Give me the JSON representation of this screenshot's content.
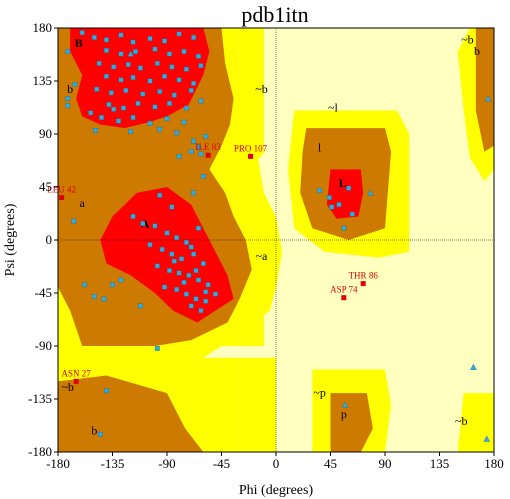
{
  "chart_data": {
    "type": "scatter",
    "title": "pdb1itn",
    "xlabel": "Phi (degrees)",
    "ylabel": "Psi (degrees)",
    "xlim": [
      -180,
      180
    ],
    "ylim": [
      -180,
      180
    ],
    "x_ticks": [
      "-180",
      "-135",
      "-90",
      "-45",
      "0",
      "45",
      "90",
      "135",
      "180"
    ],
    "y_ticks": [
      "180",
      "135",
      "90",
      "45",
      "0",
      "-45",
      "-90",
      "-135",
      "-180"
    ],
    "grid": false,
    "colors": {
      "core": "#ff0000",
      "allowed": "#cc7a00",
      "generous": "#ffff00",
      "disallowed_light": "#ffffc0",
      "background": "#ffffff",
      "points": "#33aadd",
      "labels": "#e00000"
    },
    "region_labels": [
      {
        "text": "B",
        "x": -163,
        "y": 164
      },
      {
        "text": "A",
        "x": -108,
        "y": 10
      },
      {
        "text": "L",
        "x": 55,
        "y": 45
      },
      {
        "text": "l",
        "x": 36,
        "y": 75
      },
      {
        "text": "a",
        "x": -160,
        "y": 28
      },
      {
        "text": "b",
        "x": -170,
        "y": 125
      },
      {
        "text": "~b",
        "x": -12,
        "y": 125
      },
      {
        "text": "~l",
        "x": 47,
        "y": 109
      },
      {
        "text": "~a",
        "x": -12,
        "y": -17
      },
      {
        "text": "~b",
        "x": -172,
        "y": -128
      },
      {
        "text": "b",
        "x": -150,
        "y": -165
      },
      {
        "text": "~p",
        "x": 36,
        "y": -133
      },
      {
        "text": "p",
        "x": 56,
        "y": -151
      },
      {
        "text": "~b",
        "x": 158,
        "y": 167
      },
      {
        "text": "b",
        "x": 166,
        "y": 157
      },
      {
        "text": "~b",
        "x": 153,
        "y": -157
      }
    ],
    "labeled_residues": [
      {
        "name": "LEU 42",
        "phi": -177,
        "psi": 36
      },
      {
        "name": "ILE 83",
        "phi": -56,
        "psi": 72
      },
      {
        "name": "PRO 107",
        "phi": -21,
        "psi": 71
      },
      {
        "name": "THR 86",
        "phi": 72,
        "psi": -37
      },
      {
        "name": "ASP 74",
        "phi": 56,
        "psi": -49
      },
      {
        "name": "ASN 27",
        "phi": -165,
        "psi": -120
      }
    ],
    "points_square": [
      [
        -160,
        176
      ],
      [
        -150,
        172
      ],
      [
        -140,
        170
      ],
      [
        -128,
        174
      ],
      [
        -118,
        168
      ],
      [
        -104,
        171
      ],
      [
        -92,
        169
      ],
      [
        -80,
        175
      ],
      [
        -68,
        172
      ],
      [
        -140,
        161
      ],
      [
        -128,
        158
      ],
      [
        -116,
        160
      ],
      [
        -100,
        162
      ],
      [
        -88,
        158
      ],
      [
        -76,
        160
      ],
      [
        -64,
        156
      ],
      [
        -146,
        150
      ],
      [
        -134,
        147
      ],
      [
        -122,
        149
      ],
      [
        -112,
        146
      ],
      [
        -98,
        150
      ],
      [
        -86,
        147
      ],
      [
        -74,
        145
      ],
      [
        -62,
        148
      ],
      [
        -140,
        139
      ],
      [
        -128,
        136
      ],
      [
        -118,
        138
      ],
      [
        -104,
        135
      ],
      [
        -92,
        139
      ],
      [
        -80,
        136
      ],
      [
        -68,
        133
      ],
      [
        -148,
        128
      ],
      [
        -136,
        125
      ],
      [
        -124,
        127
      ],
      [
        -110,
        124
      ],
      [
        -96,
        126
      ],
      [
        -84,
        123
      ],
      [
        -70,
        127
      ],
      [
        -138,
        115
      ],
      [
        -126,
        112
      ],
      [
        -114,
        116
      ],
      [
        -100,
        113
      ],
      [
        -88,
        116
      ],
      [
        -74,
        112
      ],
      [
        -62,
        118
      ],
      [
        -144,
        104
      ],
      [
        -130,
        101
      ],
      [
        -118,
        104
      ],
      [
        -104,
        99
      ],
      [
        -90,
        103
      ],
      [
        -76,
        100
      ],
      [
        -120,
        92
      ],
      [
        -96,
        94
      ],
      [
        -82,
        91
      ],
      [
        -172,
        160
      ],
      [
        -166,
        132
      ],
      [
        -153,
        108
      ],
      [
        -149,
        93
      ],
      [
        -134,
        111
      ],
      [
        -68,
        84
      ],
      [
        -64,
        79
      ],
      [
        -70,
        75
      ],
      [
        -80,
        71
      ],
      [
        -58,
        88
      ],
      [
        -62,
        73
      ],
      [
        -96,
        38
      ],
      [
        -118,
        20
      ],
      [
        -110,
        14
      ],
      [
        -100,
        12
      ],
      [
        -90,
        6
      ],
      [
        -82,
        2
      ],
      [
        -74,
        -2
      ],
      [
        -104,
        -4
      ],
      [
        -94,
        -8
      ],
      [
        -86,
        -12
      ],
      [
        -78,
        -16
      ],
      [
        -68,
        -12
      ],
      [
        -60,
        -20
      ],
      [
        -98,
        -22
      ],
      [
        -88,
        -26
      ],
      [
        -80,
        -28
      ],
      [
        -72,
        -30
      ],
      [
        -64,
        -34
      ],
      [
        -56,
        -38
      ],
      [
        -92,
        -40
      ],
      [
        -82,
        -42
      ],
      [
        -74,
        -46
      ],
      [
        -66,
        -50
      ],
      [
        -58,
        -52
      ],
      [
        -70,
        -56
      ],
      [
        -62,
        -60
      ],
      [
        -76,
        -36
      ],
      [
        -84,
        -18
      ],
      [
        -66,
        -26
      ],
      [
        -58,
        -44
      ],
      [
        -50,
        -46
      ],
      [
        -64,
        10
      ],
      [
        -70,
        -6
      ],
      [
        -135,
        -38
      ],
      [
        -142,
        -50
      ],
      [
        -128,
        -34
      ],
      [
        -150,
        -48
      ],
      [
        -158,
        -38
      ],
      [
        -86,
        28
      ],
      [
        -68,
        40
      ],
      [
        -112,
        -56
      ],
      [
        -98,
        -92
      ],
      [
        -140,
        -128
      ],
      [
        -145,
        -165
      ],
      [
        -167,
        16
      ],
      [
        -172,
        120
      ],
      [
        -172,
        114
      ],
      [
        -60,
        54
      ],
      [
        36,
        42
      ],
      [
        44,
        36
      ],
      [
        52,
        30
      ],
      [
        46,
        28
      ],
      [
        63,
        22
      ],
      [
        56,
        10
      ],
      [
        60,
        44
      ]
    ],
    "points_triangle": [
      [
        78,
        40
      ],
      [
        175,
        120
      ],
      [
        163,
        -108
      ],
      [
        57,
        -140
      ],
      [
        174,
        -169
      ],
      [
        -120,
        158
      ]
    ]
  }
}
